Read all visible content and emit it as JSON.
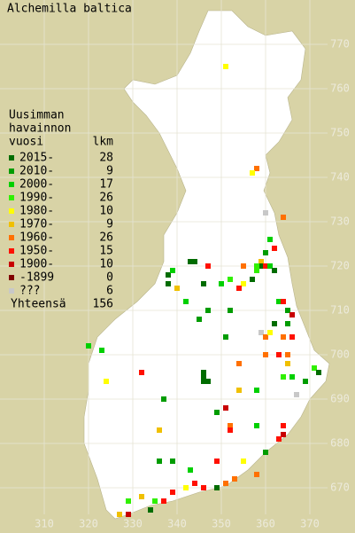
{
  "title": "Alchemilla baltica",
  "legend": {
    "heading": [
      "Uusimman",
      "havainnon",
      "vuosi"
    ],
    "count_heading": "lkm",
    "rows": [
      {
        "label": "2015-",
        "count": 28,
        "color": "#006c00"
      },
      {
        "label": "2010-",
        "count": 9,
        "color": "#009c00"
      },
      {
        "label": "2000-",
        "count": 17,
        "color": "#00d000"
      },
      {
        "label": "1990-",
        "count": 26,
        "color": "#30f000"
      },
      {
        "label": "1980-",
        "count": 10,
        "color": "#ffff00"
      },
      {
        "label": "1970-",
        "count": 9,
        "color": "#f0c000"
      },
      {
        "label": "1960-",
        "count": 26,
        "color": "#ff7000"
      },
      {
        "label": "1950-",
        "count": 15,
        "color": "#ff1000"
      },
      {
        "label": "1900-",
        "count": 10,
        "color": "#c80000"
      },
      {
        "label": "-1899",
        "count": 0,
        "color": "#800000"
      },
      {
        "label": "???",
        "count": 6,
        "color": "#c8c8c8"
      }
    ],
    "total_label": "Yhteensä",
    "total": 156
  },
  "map": {
    "xlim": [
      300,
      380
    ],
    "ylim": [
      660,
      780
    ],
    "xticks": [
      310,
      320,
      330,
      340,
      350,
      360,
      370
    ],
    "yticks": [
      670,
      680,
      690,
      700,
      710,
      720,
      730,
      740,
      750,
      760,
      770
    ],
    "points": [
      [
        351,
        765,
        4
      ],
      [
        358,
        742,
        6
      ],
      [
        357,
        741,
        4
      ],
      [
        360,
        732,
        10
      ],
      [
        364,
        731,
        6
      ],
      [
        361,
        726,
        2
      ],
      [
        362,
        724,
        7
      ],
      [
        360,
        723,
        1
      ],
      [
        359,
        721,
        5
      ],
      [
        359,
        720,
        0
      ],
      [
        360,
        720,
        7
      ],
      [
        361,
        720,
        2
      ],
      [
        362,
        719,
        0
      ],
      [
        358,
        720,
        3
      ],
      [
        343,
        721,
        0
      ],
      [
        344,
        721,
        0
      ],
      [
        347,
        720,
        7
      ],
      [
        338,
        718,
        0
      ],
      [
        338,
        716,
        0
      ],
      [
        339,
        719,
        2
      ],
      [
        346,
        716,
        0
      ],
      [
        350,
        716,
        2
      ],
      [
        352,
        717,
        3
      ],
      [
        355,
        720,
        6
      ],
      [
        355,
        716,
        4
      ],
      [
        357,
        717,
        0
      ],
      [
        354,
        715,
        7
      ],
      [
        358,
        719,
        3
      ],
      [
        340,
        715,
        5
      ],
      [
        342,
        712,
        2
      ],
      [
        347,
        710,
        1
      ],
      [
        352,
        710,
        1
      ],
      [
        363,
        712,
        2
      ],
      [
        364,
        712,
        7
      ],
      [
        365,
        710,
        1
      ],
      [
        366,
        709,
        8
      ],
      [
        365,
        707,
        1
      ],
      [
        362,
        707,
        0
      ],
      [
        359,
        705,
        10
      ],
      [
        360,
        704,
        6
      ],
      [
        361,
        705,
        4
      ],
      [
        364,
        704,
        6
      ],
      [
        366,
        704,
        7
      ],
      [
        351,
        704,
        1
      ],
      [
        345,
        708,
        1
      ],
      [
        320,
        702,
        2
      ],
      [
        323,
        701,
        2
      ],
      [
        360,
        700,
        6
      ],
      [
        363,
        700,
        7
      ],
      [
        365,
        700,
        6
      ],
      [
        365,
        698,
        5
      ],
      [
        364,
        695,
        3
      ],
      [
        369,
        694,
        1
      ],
      [
        371,
        697,
        3
      ],
      [
        372,
        696,
        0
      ],
      [
        366,
        695,
        2
      ],
      [
        332,
        696,
        7
      ],
      [
        324,
        694,
        4
      ],
      [
        346,
        695,
        0
      ],
      [
        347,
        694,
        0
      ],
      [
        346,
        694,
        0
      ],
      [
        346,
        696,
        0
      ],
      [
        354,
        698,
        6
      ],
      [
        354,
        692,
        5
      ],
      [
        358,
        692,
        2
      ],
      [
        367,
        691,
        10
      ],
      [
        351,
        688,
        8
      ],
      [
        349,
        687,
        1
      ],
      [
        337,
        690,
        1
      ],
      [
        364,
        684,
        7
      ],
      [
        364,
        682,
        8
      ],
      [
        363,
        681,
        7
      ],
      [
        336,
        683,
        5
      ],
      [
        352,
        684,
        6
      ],
      [
        352,
        683,
        7
      ],
      [
        358,
        684,
        2
      ],
      [
        360,
        678,
        1
      ],
      [
        355,
        676,
        4
      ],
      [
        349,
        676,
        7
      ],
      [
        343,
        674,
        2
      ],
      [
        339,
        676,
        1
      ],
      [
        336,
        676,
        1
      ],
      [
        358,
        673,
        6
      ],
      [
        353,
        672,
        6
      ],
      [
        349,
        670,
        0
      ],
      [
        351,
        671,
        6
      ],
      [
        346,
        670,
        7
      ],
      [
        342,
        670,
        4
      ],
      [
        344,
        671,
        7
      ],
      [
        339,
        669,
        7
      ],
      [
        337,
        667,
        7
      ],
      [
        332,
        668,
        5
      ],
      [
        335,
        667,
        3
      ],
      [
        329,
        667,
        3
      ],
      [
        334,
        665,
        0
      ],
      [
        327,
        664,
        5
      ],
      [
        329,
        664,
        8
      ]
    ]
  }
}
